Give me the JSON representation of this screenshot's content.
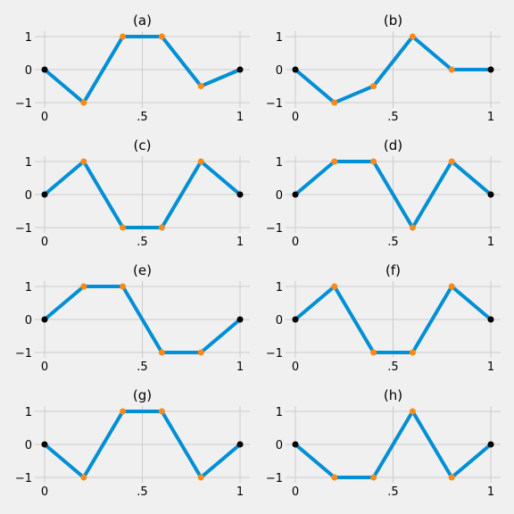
{
  "chart_data": [
    {
      "type": "line",
      "title": "(a)",
      "x": [
        0,
        0.2,
        0.4,
        0.6,
        0.8,
        1
      ],
      "values": [
        0,
        -1,
        1,
        1,
        -0.5,
        0
      ],
      "xlim": [
        0,
        1
      ],
      "ylim": [
        -1,
        1
      ],
      "xticks": [
        "0",
        ".5",
        "1"
      ],
      "yticks": [
        "1",
        "0",
        "−1"
      ],
      "grid": true,
      "series_color": "#008fd5",
      "end_marker_color": "#000000",
      "inner_marker_color": "#fc8a17"
    },
    {
      "type": "line",
      "title": "(b)",
      "x": [
        0,
        0.2,
        0.4,
        0.6,
        0.8,
        1
      ],
      "values": [
        0,
        -1,
        -0.5,
        1,
        0,
        0
      ],
      "xlim": [
        0,
        1
      ],
      "ylim": [
        -1,
        1
      ],
      "xticks": [
        "0",
        ".5",
        "1"
      ],
      "yticks": [
        "1",
        "0",
        "−1"
      ],
      "grid": true,
      "series_color": "#008fd5",
      "end_marker_color": "#000000",
      "inner_marker_color": "#fc8a17"
    },
    {
      "type": "line",
      "title": "(c)",
      "x": [
        0,
        0.2,
        0.4,
        0.6,
        0.8,
        1
      ],
      "values": [
        0,
        1,
        -1,
        -1,
        1,
        0
      ],
      "xlim": [
        0,
        1
      ],
      "ylim": [
        -1,
        1
      ],
      "xticks": [
        "0",
        ".5",
        "1"
      ],
      "yticks": [
        "1",
        "0",
        "−1"
      ],
      "grid": true,
      "series_color": "#008fd5",
      "end_marker_color": "#000000",
      "inner_marker_color": "#fc8a17"
    },
    {
      "type": "line",
      "title": "(d)",
      "x": [
        0,
        0.2,
        0.4,
        0.6,
        0.8,
        1
      ],
      "values": [
        0,
        1,
        1,
        -1,
        1,
        0
      ],
      "xlim": [
        0,
        1
      ],
      "ylim": [
        -1,
        1
      ],
      "xticks": [
        "0",
        ".5",
        "1"
      ],
      "yticks": [
        "1",
        "0",
        "−1"
      ],
      "grid": true,
      "series_color": "#008fd5",
      "end_marker_color": "#000000",
      "inner_marker_color": "#fc8a17"
    },
    {
      "type": "line",
      "title": "(e)",
      "x": [
        0,
        0.2,
        0.4,
        0.6,
        0.8,
        1
      ],
      "values": [
        0,
        1,
        1,
        -1,
        -1,
        0
      ],
      "xlim": [
        0,
        1
      ],
      "ylim": [
        -1,
        1
      ],
      "xticks": [
        "0",
        ".5",
        "1"
      ],
      "yticks": [
        "1",
        "0",
        "−1"
      ],
      "grid": true,
      "series_color": "#008fd5",
      "end_marker_color": "#000000",
      "inner_marker_color": "#fc8a17"
    },
    {
      "type": "line",
      "title": "(f)",
      "x": [
        0,
        0.2,
        0.4,
        0.6,
        0.8,
        1
      ],
      "values": [
        0,
        1,
        -1,
        -1,
        1,
        0
      ],
      "xlim": [
        0,
        1
      ],
      "ylim": [
        -1,
        1
      ],
      "xticks": [
        "0",
        ".5",
        "1"
      ],
      "yticks": [
        "1",
        "0",
        "−1"
      ],
      "grid": true,
      "series_color": "#008fd5",
      "end_marker_color": "#000000",
      "inner_marker_color": "#fc8a17"
    },
    {
      "type": "line",
      "title": "(g)",
      "x": [
        0,
        0.2,
        0.4,
        0.6,
        0.8,
        1
      ],
      "values": [
        0,
        -1,
        1,
        1,
        -1,
        0
      ],
      "xlim": [
        0,
        1
      ],
      "ylim": [
        -1,
        1
      ],
      "xticks": [
        "0",
        ".5",
        "1"
      ],
      "yticks": [
        "1",
        "0",
        "−1"
      ],
      "grid": true,
      "series_color": "#008fd5",
      "end_marker_color": "#000000",
      "inner_marker_color": "#fc8a17"
    },
    {
      "type": "line",
      "title": "(h)",
      "x": [
        0,
        0.2,
        0.4,
        0.6,
        0.8,
        1
      ],
      "values": [
        0,
        -1,
        -1,
        1,
        -1,
        0
      ],
      "xlim": [
        0,
        1
      ],
      "ylim": [
        -1,
        1
      ],
      "xticks": [
        "0",
        ".5",
        "1"
      ],
      "yticks": [
        "1",
        "0",
        "−1"
      ],
      "grid": true,
      "series_color": "#008fd5",
      "end_marker_color": "#000000",
      "inner_marker_color": "#fc8a17"
    }
  ]
}
